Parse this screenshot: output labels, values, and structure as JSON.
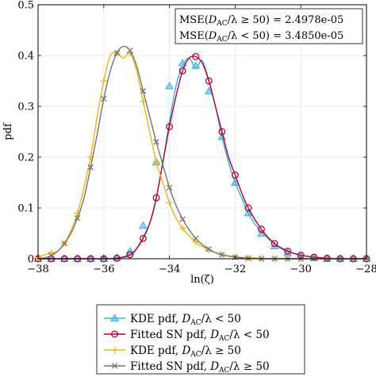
{
  "chart_data": {
    "type": "line",
    "xlabel": "ln(ζ)",
    "ylabel": "pdf",
    "xlim": [
      -38,
      -28
    ],
    "ylim": [
      0,
      0.5
    ],
    "xticks": [
      -38,
      -36,
      -34,
      -32,
      -30,
      -28
    ],
    "xtick_labels": [
      "−38",
      "−36",
      "−34",
      "−32",
      "−30",
      "−28"
    ],
    "yticks": [
      0,
      0.1,
      0.2,
      0.3,
      0.4,
      0.5
    ],
    "ytick_labels": [
      "0",
      "0.1",
      "0.2",
      "0.3",
      "0.4",
      "0.5"
    ],
    "grid": true,
    "legend_position": "below plot",
    "annotations": [
      {
        "label": "MSE(D_AC/λ ≥ 50) = 2.4978e-05",
        "prefix": "MSE(",
        "var": "D",
        "sub": "AC",
        "rel": "/λ ≥ 50) = 2.4978e-05"
      },
      {
        "label": "MSE(D_AC/λ < 50) = 3.4850e-05",
        "prefix": "MSE(",
        "var": "D",
        "sub": "AC",
        "rel": "/λ < 50) = 3.4850e-05"
      }
    ],
    "series": [
      {
        "name": "KDE pdf, D_AC/λ < 50",
        "legend": {
          "text": "KDE pdf, ",
          "var": "D",
          "sub": "AC",
          "rel": "/λ < 50"
        },
        "color": "#3fb0e0",
        "marker": "triangle",
        "x": [
          -38,
          -37.5,
          -37,
          -36.5,
          -36,
          -35.5,
          -35.2,
          -35,
          -34.6,
          -34.4,
          -34.2,
          -34,
          -33.8,
          -33.6,
          -33.4,
          -33.2,
          -33,
          -32.8,
          -32.6,
          -32.4,
          -32.2,
          -32,
          -31.8,
          -31.6,
          -31.3,
          -31,
          -30.6,
          -30.2,
          -29.8,
          -29.4,
          -29,
          -28.6,
          -28.2,
          -28
        ],
        "y": [
          0,
          0,
          0,
          0,
          0,
          0.002,
          0.005,
          0.02,
          0.07,
          0.12,
          0.19,
          0.27,
          0.34,
          0.38,
          0.395,
          0.375,
          0.39,
          0.35,
          0.3,
          0.24,
          0.19,
          0.15,
          0.12,
          0.09,
          0.06,
          0.04,
          0.02,
          0.01,
          0.005,
          0.002,
          0,
          0,
          0,
          0
        ],
        "marker_x": [
          -38,
          -37.6,
          -37.2,
          -36.8,
          -36.4,
          -36,
          -35.6,
          -35.2,
          -34.8,
          -34.4,
          -34,
          -33.6,
          -33.2,
          -32.8,
          -32.4,
          -32,
          -31.6,
          -31.2,
          -30.8,
          -30.4,
          -30,
          -29.6,
          -29.2,
          -28.8,
          -28.4,
          -28
        ],
        "marker_y": [
          0,
          0,
          0,
          0,
          0,
          0,
          0.002,
          0.015,
          0.065,
          0.19,
          0.34,
          0.385,
          0.38,
          0.33,
          0.24,
          0.15,
          0.09,
          0.05,
          0.025,
          0.012,
          0.005,
          0.002,
          0,
          0,
          0,
          0
        ]
      },
      {
        "name": "Fitted SN pdf, D_AC/λ < 50",
        "legend": {
          "text": "Fitted SN pdf, ",
          "var": "D",
          "sub": "AC",
          "rel": "/λ < 50"
        },
        "color": "#b30031",
        "marker": "circle",
        "x": [
          -38,
          -37.5,
          -37,
          -36.5,
          -36,
          -35.6,
          -35.2,
          -35,
          -34.8,
          -34.6,
          -34.4,
          -34.2,
          -34,
          -33.8,
          -33.6,
          -33.4,
          -33.2,
          -33,
          -32.8,
          -32.6,
          -32.4,
          -32.2,
          -32,
          -31.8,
          -31.6,
          -31.2,
          -30.8,
          -30.4,
          -30,
          -29.6,
          -29.2,
          -28.8,
          -28.4,
          -28
        ],
        "y": [
          0,
          0,
          0,
          0,
          0,
          0.001,
          0.008,
          0.02,
          0.04,
          0.07,
          0.12,
          0.19,
          0.26,
          0.32,
          0.37,
          0.395,
          0.398,
          0.385,
          0.35,
          0.3,
          0.25,
          0.2,
          0.165,
          0.13,
          0.1,
          0.058,
          0.03,
          0.015,
          0.007,
          0.003,
          0.001,
          0,
          0,
          0
        ],
        "marker_x": [
          -38,
          -37.6,
          -37.2,
          -36.8,
          -36.4,
          -36,
          -35.6,
          -35.2,
          -34.8,
          -34.4,
          -34,
          -33.6,
          -33.2,
          -32.8,
          -32.4,
          -32,
          -31.6,
          -31.2,
          -30.8,
          -30.4,
          -30,
          -29.6,
          -29.2,
          -28.8,
          -28.4,
          -28
        ],
        "marker_y": [
          0,
          0,
          0,
          0,
          0,
          0,
          0.001,
          0.008,
          0.04,
          0.12,
          0.26,
          0.37,
          0.398,
          0.35,
          0.25,
          0.165,
          0.1,
          0.058,
          0.03,
          0.015,
          0.007,
          0.003,
          0.001,
          0,
          0,
          0
        ]
      },
      {
        "name": "KDE pdf, D_AC/λ ≥ 50",
        "legend": {
          "text": "KDE pdf, ",
          "var": "D",
          "sub": "AC",
          "rel": "/λ ≥ 50"
        },
        "color": "#f2b21b",
        "marker": "plus",
        "x": [
          -38,
          -37.8,
          -37.6,
          -37.4,
          -37.2,
          -37,
          -36.8,
          -36.6,
          -36.4,
          -36.2,
          -36,
          -35.8,
          -35.6,
          -35.4,
          -35.2,
          -35,
          -34.8,
          -34.6,
          -34.4,
          -34.2,
          -34,
          -33.8,
          -33.6,
          -33.4,
          -33.2,
          -33,
          -32.8,
          -32.6,
          -32.4,
          -32,
          -31.6,
          -31.2,
          -30.8,
          -30.4,
          -30,
          -29.6,
          -29.2,
          -28.8,
          -28.4,
          -28
        ],
        "y": [
          0.002,
          0.008,
          0.012,
          0.015,
          0.03,
          0.055,
          0.09,
          0.14,
          0.2,
          0.28,
          0.35,
          0.4,
          0.405,
          0.395,
          0.405,
          0.37,
          0.31,
          0.25,
          0.19,
          0.15,
          0.11,
          0.08,
          0.06,
          0.045,
          0.033,
          0.024,
          0.017,
          0.012,
          0.008,
          0.004,
          0.002,
          0.001,
          0,
          0,
          0,
          0,
          0,
          0,
          0,
          0
        ],
        "marker_x": [
          -38,
          -37.6,
          -37.2,
          -36.8,
          -36.4,
          -36,
          -35.6,
          -35.2,
          -34.8,
          -34.4,
          -34,
          -33.6,
          -33.2,
          -32.8,
          -32.4,
          -32,
          -31.6,
          -31.2,
          -30.8,
          -30.4,
          -30
        ],
        "marker_y": [
          0.002,
          0.012,
          0.03,
          0.09,
          0.2,
          0.35,
          0.405,
          0.405,
          0.31,
          0.19,
          0.11,
          0.06,
          0.033,
          0.017,
          0.008,
          0.004,
          0.002,
          0.001,
          0,
          0,
          0
        ]
      },
      {
        "name": "Fitted SN pdf, D_AC/λ ≥ 50",
        "legend": {
          "text": "Fitted SN pdf, ",
          "var": "D",
          "sub": "AC",
          "rel": "/λ ≥ 50"
        },
        "color": "#757575",
        "marker": "x",
        "x": [
          -38,
          -37.8,
          -37.6,
          -37.4,
          -37.2,
          -37,
          -36.8,
          -36.6,
          -36.4,
          -36.2,
          -36,
          -35.8,
          -35.6,
          -35.4,
          -35.2,
          -35,
          -34.8,
          -34.6,
          -34.4,
          -34.2,
          -34,
          -33.8,
          -33.6,
          -33.4,
          -33.2,
          -33,
          -32.8,
          -32.6,
          -32.4,
          -32,
          -31.6,
          -31.2,
          -30.8,
          -30.4,
          -30,
          -29.6,
          -29.2,
          -28.8,
          -28.4,
          -28
        ],
        "y": [
          0.0,
          0.002,
          0.006,
          0.015,
          0.03,
          0.05,
          0.08,
          0.12,
          0.18,
          0.245,
          0.315,
          0.37,
          0.405,
          0.418,
          0.41,
          0.38,
          0.33,
          0.28,
          0.23,
          0.185,
          0.14,
          0.105,
          0.078,
          0.057,
          0.04,
          0.028,
          0.019,
          0.012,
          0.008,
          0.003,
          0.001,
          0,
          0,
          0,
          0,
          0,
          0,
          0,
          0,
          0
        ],
        "marker_x": [
          -37.6,
          -37.2,
          -36.8,
          -36.4,
          -36,
          -35.6,
          -35.2,
          -34.8,
          -34.4,
          -34,
          -33.6,
          -33.2,
          -32.8,
          -32.4,
          -32,
          -31.6,
          -31.2,
          -30.8,
          -30.4,
          -30,
          -29.6,
          -29.2,
          -28.8,
          -28.4,
          -28
        ],
        "marker_y": [
          0.006,
          0.03,
          0.08,
          0.18,
          0.315,
          0.405,
          0.41,
          0.33,
          0.23,
          0.14,
          0.078,
          0.04,
          0.019,
          0.008,
          0.003,
          0.001,
          0,
          0,
          0,
          0,
          0,
          0,
          0,
          0,
          0
        ]
      }
    ]
  }
}
